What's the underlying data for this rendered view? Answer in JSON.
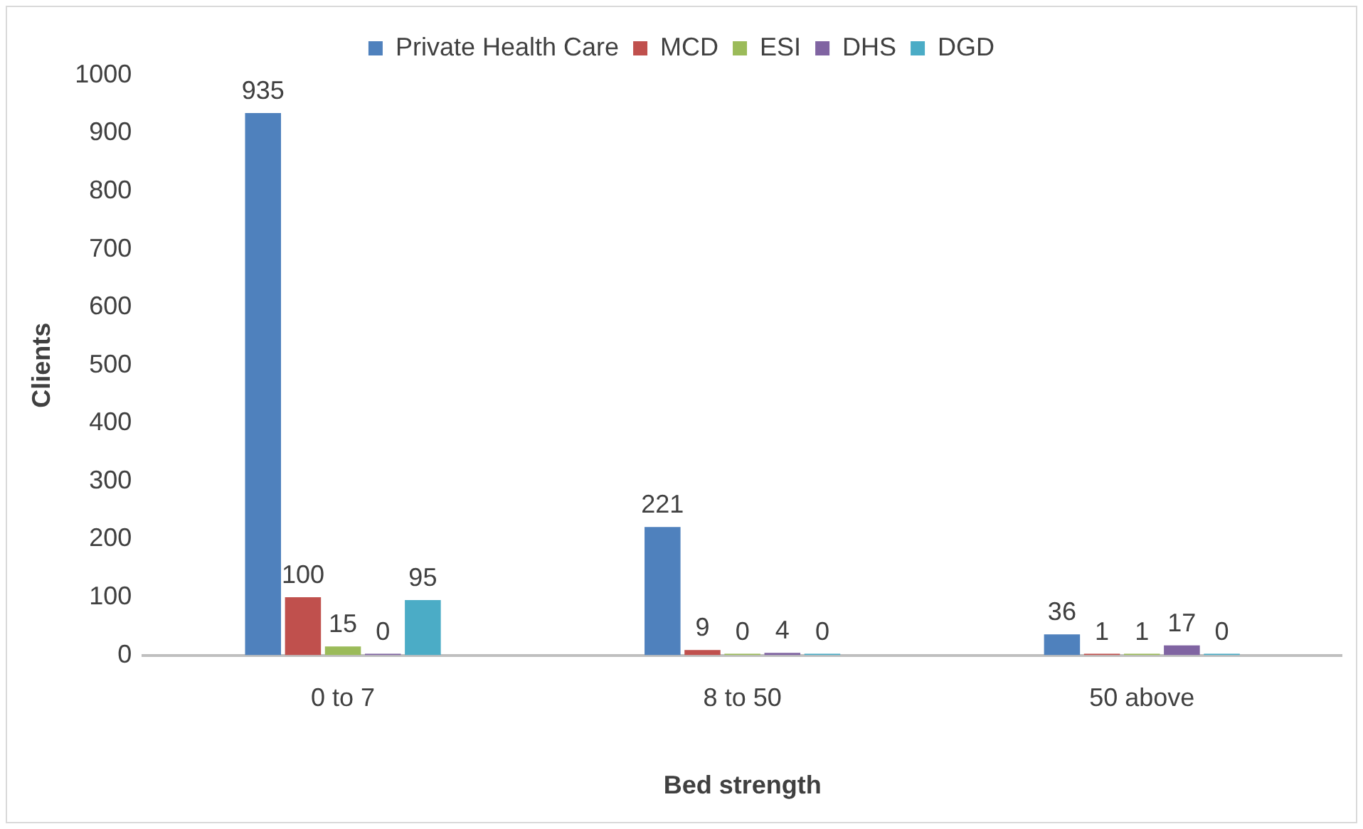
{
  "chart_data": {
    "type": "bar",
    "xlabel": "Bed strength",
    "ylabel": "Clients",
    "categories": [
      "0 to 7",
      "8 to 50",
      "50 above"
    ],
    "series": [
      {
        "name": "Private Health Care",
        "color": "#4f81bd",
        "values": [
          935,
          221,
          36
        ]
      },
      {
        "name": "MCD",
        "color": "#c0504d",
        "values": [
          100,
          9,
          1
        ]
      },
      {
        "name": "ESI",
        "color": "#9bbb59",
        "values": [
          15,
          0,
          1
        ]
      },
      {
        "name": "DHS",
        "color": "#8064a2",
        "values": [
          0,
          4,
          17
        ]
      },
      {
        "name": "DGD",
        "color": "#4bacc6",
        "values": [
          95,
          0,
          0
        ]
      }
    ],
    "ylim": [
      0,
      1000
    ],
    "yticks": [
      0,
      100,
      200,
      300,
      400,
      500,
      600,
      700,
      800,
      900,
      1000
    ],
    "grid": false,
    "legend": "top",
    "data_labels": true
  }
}
